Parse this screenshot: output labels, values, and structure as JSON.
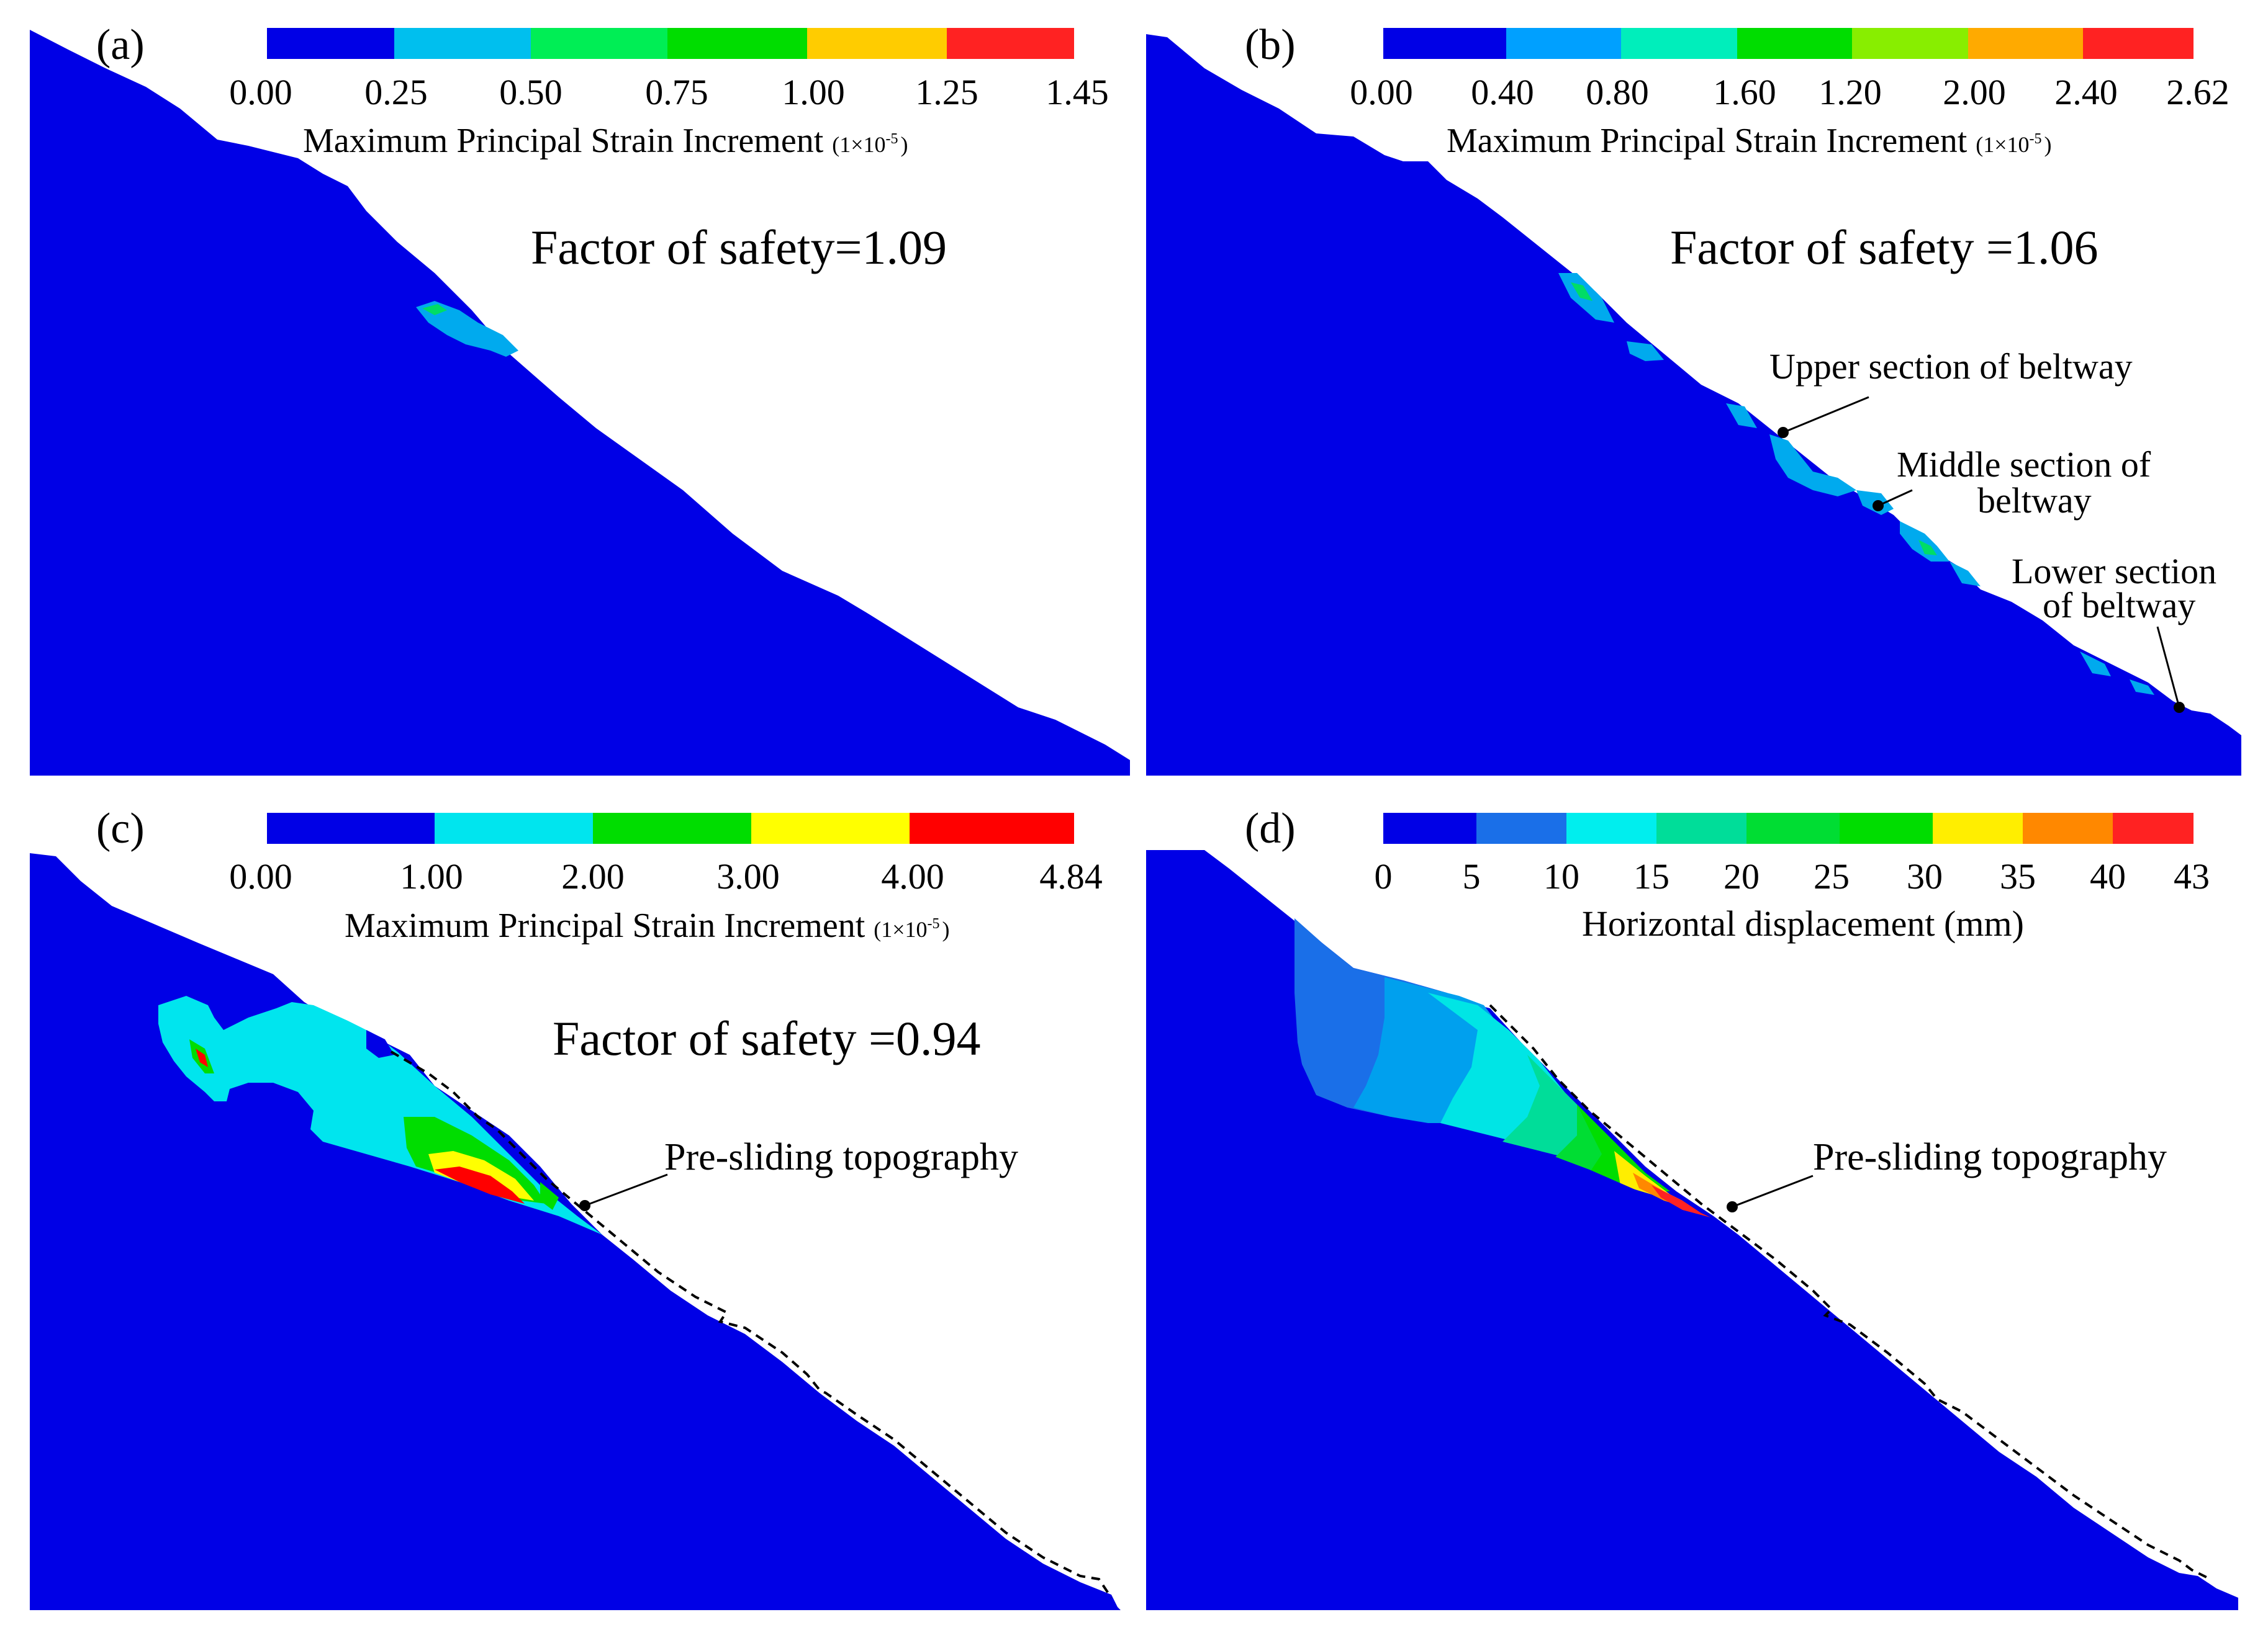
{
  "panels": [
    {
      "id": "a",
      "label": "(a)",
      "legend_title": "Maximum Principal Strain Increment",
      "legend_unit": "(1×10",
      "legend_unit_exp": "-5",
      "legend_unit_close": ")",
      "ticks": [
        "0.00",
        "0.25",
        "0.50",
        "0.75",
        "1.00",
        "1.25",
        "1.45"
      ],
      "colors": [
        "#0000e6",
        "#00bfee",
        "#00ee55",
        "#00dd00",
        "#ffcc00",
        "#ff2222"
      ],
      "annotation": "Factor of safety=1.09"
    },
    {
      "id": "b",
      "label": "(b)",
      "legend_title": "Maximum Principal Strain Increment",
      "legend_unit": "(1×10",
      "legend_unit_exp": "-5",
      "legend_unit_close": ")",
      "ticks": [
        "0.00",
        "0.40",
        "0.80",
        "1.60",
        "1.20",
        "2.00",
        "2.40",
        "2.62"
      ],
      "colors": [
        "#0000e6",
        "#00a0ff",
        "#00eebb",
        "#00dd00",
        "#88ee00",
        "#ffaa00",
        "#ff2222"
      ],
      "annotation": "Factor of safety =1.06",
      "callouts": [
        {
          "id": "upper",
          "text": "Upper section of beltway"
        },
        {
          "id": "middle",
          "text1": "Middle section of",
          "text2": "beltway"
        },
        {
          "id": "lower",
          "text1": "Lower section",
          "text2": "of beltway"
        }
      ]
    },
    {
      "id": "c",
      "label": "(c)",
      "legend_title": "Maximum Principal Strain Increment",
      "legend_unit": "(1×10",
      "legend_unit_exp": "-5",
      "legend_unit_close": ")",
      "ticks": [
        "0.00",
        "1.00",
        "2.00",
        "3.00",
        "4.00",
        "4.84"
      ],
      "colors": [
        "#0000e6",
        "#00e5ee",
        "#00dd00",
        "#ffff00",
        "#ff0000"
      ],
      "annotation": "Factor of safety =0.94",
      "callout": "Pre-sliding topography"
    },
    {
      "id": "d",
      "label": "(d)",
      "legend_title": "Horizontal displacement (mm)",
      "ticks": [
        "0",
        "5",
        "10",
        "15",
        "20",
        "25",
        "30",
        "35",
        "40",
        "43"
      ],
      "colors": [
        "#0000e6",
        "#1a6fe8",
        "#00eeee",
        "#00dd99",
        "#00dd33",
        "#00dd00",
        "#ffee00",
        "#ff8800",
        "#ff2222"
      ],
      "callout": "Pre-sliding topography"
    }
  ],
  "colors": {
    "slope_blue": "#0000e6",
    "background": "#ffffff",
    "ink": "#000000"
  }
}
